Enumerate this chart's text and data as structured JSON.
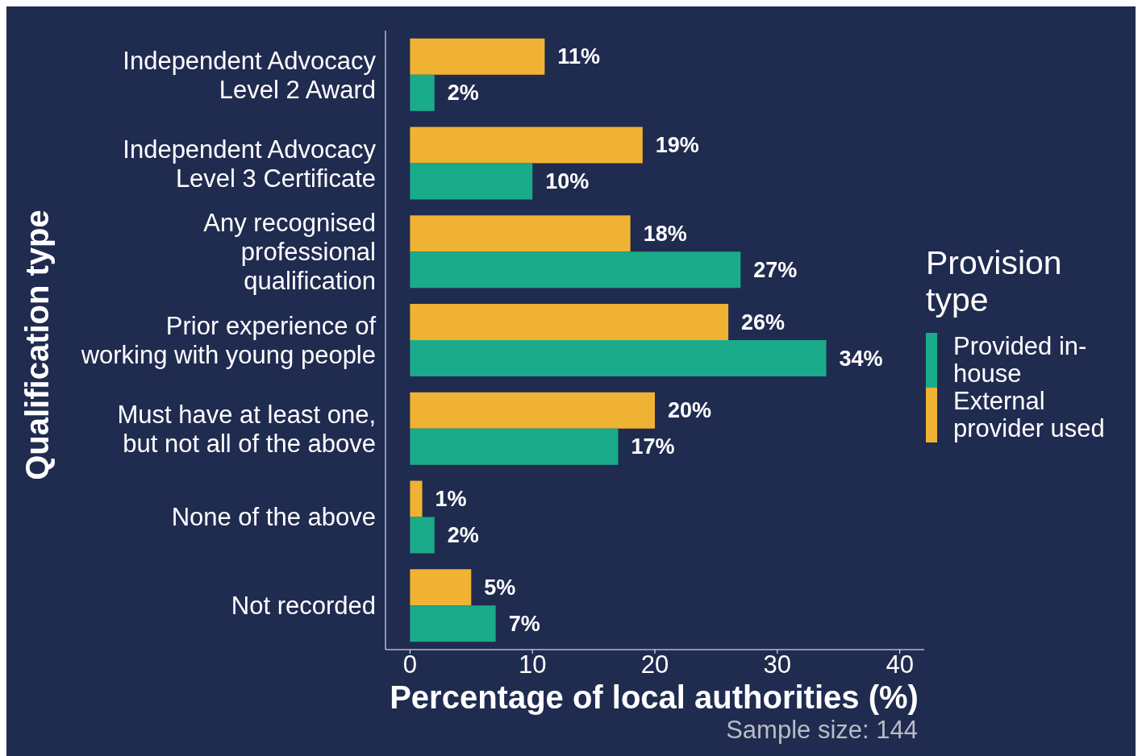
{
  "chart_data": {
    "type": "bar",
    "orientation": "horizontal",
    "xlabel": "Percentage of local authorities (%)",
    "ylabel": "Qualification type",
    "legend_title": "Provision type",
    "legend": "right",
    "grid": false,
    "categories": [
      "Independent Advocacy Level 2 Award",
      "Independent Advocacy Level 3 Certificate",
      "Any recognised professional qualification",
      "Prior experience of working with young people",
      "Must have at least one, but not all of the above",
      "None of the above",
      "Not recorded"
    ],
    "series": [
      {
        "name": "Provided in-house",
        "color": "#1aab8a",
        "values": [
          2,
          10,
          27,
          34,
          17,
          2,
          7
        ],
        "value_labels": [
          "2%",
          "10%",
          "27%",
          "34%",
          "17%",
          "2%",
          "7%"
        ]
      },
      {
        "name": "External provider used",
        "color": "#f0b232",
        "values": [
          11,
          19,
          18,
          26,
          20,
          1,
          5
        ],
        "value_labels": [
          "11%",
          "19%",
          "18%",
          "26%",
          "20%",
          "1%",
          "5%"
        ]
      }
    ],
    "xlim": [
      -2,
      42
    ],
    "xticks": [
      0,
      10,
      20,
      30,
      40
    ],
    "annotations": [
      "Sample size: 144"
    ]
  }
}
